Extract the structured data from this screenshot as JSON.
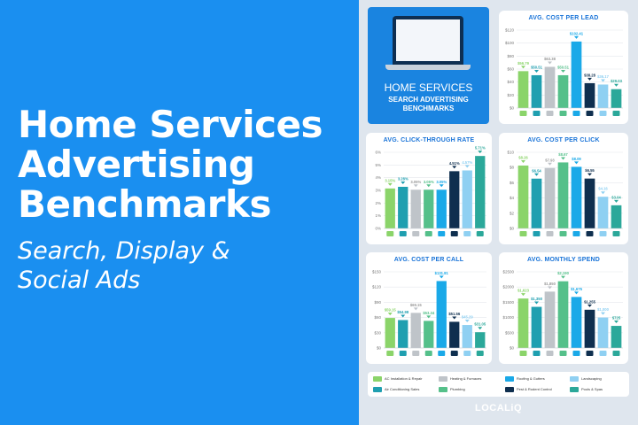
{
  "headline": {
    "title": "Home Services\nAdvertising\nBenchmarks",
    "subtitle": "Search, Display &\nSocial Ads"
  },
  "hero": {
    "line1": "HOME SERVICES",
    "line2": "SEARCH ADVERTISING\nBENCHMARKS"
  },
  "brand": "LOCALiQ",
  "colors": [
    "#8bd46a",
    "#1f9fb0",
    "#bfc4c9",
    "#55c08a",
    "#1aa9e8",
    "#0f2f4f",
    "#8fd0f2",
    "#2ba89a"
  ],
  "chart_data": [
    {
      "type": "bar",
      "title": "AVG. COST PER LEAD",
      "ylim": [
        0,
        120
      ],
      "yticks": [
        "$0",
        "$20",
        "$40",
        "$60",
        "$80",
        "$100",
        "$120"
      ],
      "values": [
        56.79,
        50.51,
        63.38,
        50.51,
        102.41,
        38.28,
        36.17,
        29.03
      ],
      "labels": [
        "$56.79",
        "$50.51",
        "$63.38",
        "$50.51",
        "$102.41",
        "$38.28",
        "$36.17",
        "$29.03"
      ]
    },
    {
      "type": "bar",
      "title": "AVG. CLICK-THROUGH RATE",
      "ylim": [
        0,
        6
      ],
      "yticks": [
        "0%",
        "1%",
        "2%",
        "3%",
        "4%",
        "5%",
        "6%"
      ],
      "values": [
        3.15,
        3.28,
        3.05,
        3.05,
        3.05,
        4.51,
        4.57,
        5.71
      ],
      "labels": [
        "3.15%",
        "3.28%",
        "3.05%",
        "3.05%",
        "3.05%",
        "4.51%",
        "4.57%",
        "5.71%"
      ]
    },
    {
      "type": "bar",
      "title": "AVG. COST PER CLICK",
      "ylim": [
        0,
        10
      ],
      "yticks": [
        "$0",
        "$2",
        "$4",
        "$6",
        "$8",
        "$10"
      ],
      "values": [
        8.26,
        6.54,
        7.93,
        8.67,
        8.09,
        6.55,
        4.16,
        3.04
      ],
      "labels": [
        "$8.26",
        "$6.54",
        "$7.93",
        "$8.67",
        "$8.09",
        "$6.55",
        "$4.16",
        "$3.04"
      ]
    },
    {
      "type": "bar",
      "title": "AVG. COST PER CALL",
      "ylim": [
        0,
        150
      ],
      "yticks": [
        "$0",
        "$30",
        "$60",
        "$90",
        "$120",
        "$150"
      ],
      "values": [
        59.15,
        54.98,
        69.15,
        53.34,
        131.81,
        51.56,
        45.29,
        31.05
      ],
      "labels": [
        "$59.15",
        "$54.98",
        "$69.15",
        "$53.34",
        "$131.81",
        "$51.56",
        "$45.29",
        "$31.05"
      ]
    },
    {
      "type": "bar",
      "title": "AVG. MONTHLY SPEND",
      "ylim": [
        0,
        2500
      ],
      "yticks": [
        "$0",
        "$500",
        "$1000",
        "$1500",
        "$2000",
        "$2500"
      ],
      "values": [
        1623,
        1350,
        1850,
        2190,
        1675,
        1255,
        1000,
        725
      ],
      "labels": [
        "$1,623",
        "$1,350",
        "$1,850",
        "$2,190",
        "$1,675",
        "$1,255",
        "$1,000",
        "$725"
      ]
    }
  ],
  "legend": [
    {
      "label": "AC Installation & Repair"
    },
    {
      "label": "Air Conditioning Sales"
    },
    {
      "label": "Heating & Furnaces"
    },
    {
      "label": "Plumbing"
    },
    {
      "label": "Roofing & Gutters"
    },
    {
      "label": "Pest & Rodent Control"
    },
    {
      "label": "Landscaping"
    },
    {
      "label": "Pools & Spas"
    }
  ]
}
